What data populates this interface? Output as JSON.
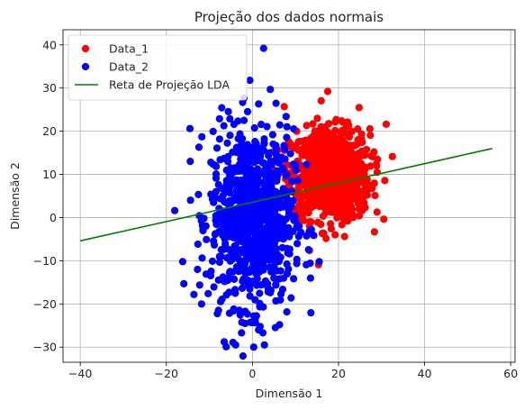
{
  "chart_data": {
    "type": "scatter",
    "title": "Projeção dos dados normais",
    "xlabel": "Dimensão 1",
    "ylabel": "Dimensão 2",
    "xlim": [
      -44,
      61
    ],
    "ylim": [
      -33.5,
      43.5
    ],
    "xticks": [
      -40,
      -20,
      0,
      20,
      40,
      60
    ],
    "yticks": [
      -30,
      -20,
      -10,
      0,
      10,
      20,
      30,
      40
    ],
    "grid": true,
    "legend_position": "top-left",
    "series": [
      {
        "name": "Data_1",
        "kind": "scatter",
        "color": "#ff0000",
        "distribution": {
          "mean": [
            18,
            10
          ],
          "std": [
            4.6,
            5.2
          ],
          "count": 900
        },
        "points": [
          [
            17.5,
            29.2
          ],
          [
            24.8,
            25.5
          ],
          [
            31.1,
            21.6
          ],
          [
            7.4,
            25.7
          ],
          [
            27.2,
            7.4
          ],
          [
            26.2,
            2.3
          ],
          [
            21.4,
            -4.4
          ],
          [
            19.2,
            -4.0
          ]
        ]
      },
      {
        "name": "Data_2",
        "kind": "scatter",
        "color": "#0000ff",
        "distribution": {
          "mean": [
            0,
            0
          ],
          "std": [
            4.8,
            10.2
          ],
          "count": 900
        },
        "points": [
          [
            2.6,
            39.2
          ],
          [
            -0.6,
            31.8
          ],
          [
            -14.5,
            20.6
          ],
          [
            -16.2,
            -10.2
          ],
          [
            -4.5,
            -28.9
          ],
          [
            -3.9,
            -29.5
          ],
          [
            0.3,
            -30.0
          ],
          [
            2.8,
            -29.5
          ],
          [
            6.3,
            -24.8
          ],
          [
            13.5,
            -14.0
          ],
          [
            15.5,
            -10.2
          ],
          [
            -11.8,
            -20.0
          ]
        ]
      },
      {
        "name": "Reta de Projeção LDA",
        "kind": "line",
        "color": "#008000",
        "x": [
          -40,
          55.7
        ],
        "y": [
          -5.4,
          16.0
        ]
      }
    ]
  }
}
